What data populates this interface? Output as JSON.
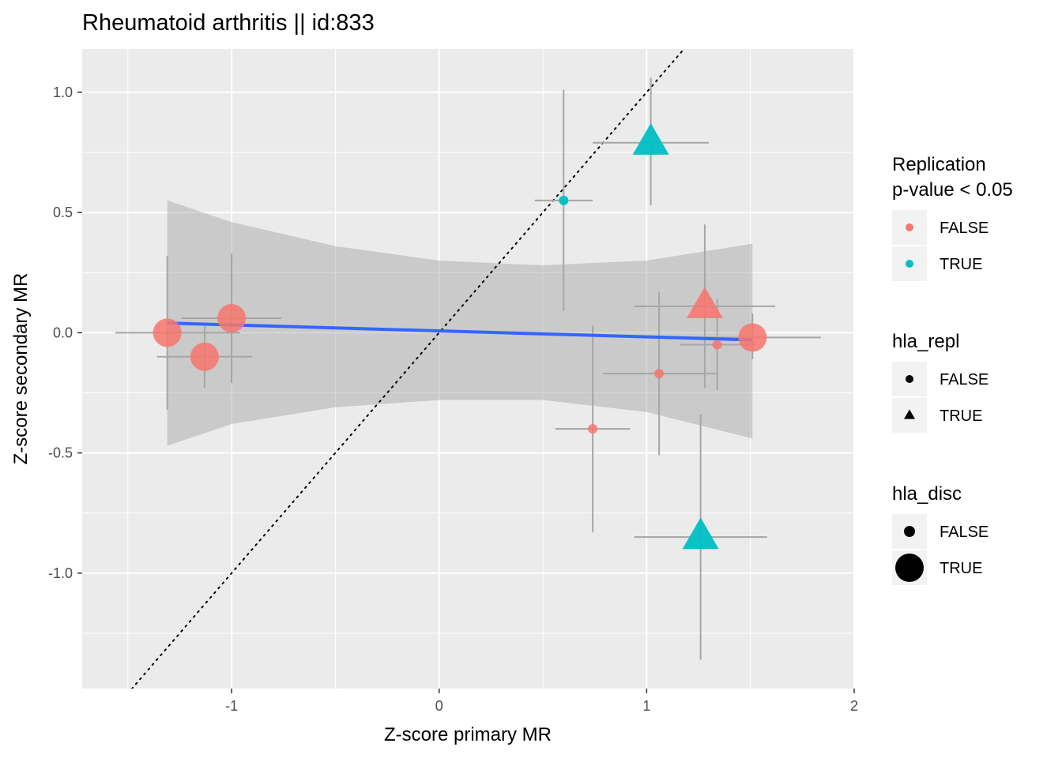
{
  "chart_data": {
    "type": "scatter",
    "title": "Rheumatoid arthritis || id:833",
    "xlabel": "Z-score primary MR",
    "ylabel": "Z-score secondary MR",
    "xlim": [
      -1.72,
      2.0
    ],
    "ylim": [
      -1.48,
      1.18
    ],
    "x_ticks": [
      -1,
      0,
      1,
      2
    ],
    "x_tick_labels": [
      "-1",
      "0",
      "1",
      "2"
    ],
    "y_ticks": [
      -1.0,
      -0.5,
      0.0,
      0.5,
      1.0
    ],
    "y_tick_labels": [
      "-1.0",
      "-0.5",
      "0.0",
      "0.5",
      "1.0"
    ],
    "grid": true,
    "legend_position": "right",
    "colors": {
      "FALSE": "#F8766D",
      "TRUE": "#00BFC4",
      "fit_line": "#3366FF",
      "ribbon": "#999999",
      "error_bars": "#a6a6a6",
      "panel": "#EBEBEB"
    },
    "points": [
      {
        "x": -1.31,
        "y": 0.0,
        "x_lo": -1.56,
        "x_hi": -0.96,
        "y_lo": -0.32,
        "y_hi": 0.32,
        "replication": "FALSE",
        "hla_repl": "FALSE",
        "hla_disc": "TRUE"
      },
      {
        "x": -1.13,
        "y": -0.1,
        "x_lo": -1.36,
        "x_hi": -0.9,
        "y_lo": -0.23,
        "y_hi": 0.04,
        "replication": "FALSE",
        "hla_repl": "FALSE",
        "hla_disc": "TRUE"
      },
      {
        "x": -1.0,
        "y": 0.06,
        "x_lo": -1.24,
        "x_hi": -0.76,
        "y_lo": -0.21,
        "y_hi": 0.33,
        "replication": "FALSE",
        "hla_repl": "FALSE",
        "hla_disc": "TRUE"
      },
      {
        "x": 0.6,
        "y": 0.55,
        "x_lo": 0.46,
        "x_hi": 0.74,
        "y_lo": 0.09,
        "y_hi": 1.01,
        "replication": "TRUE",
        "hla_repl": "FALSE",
        "hla_disc": "FALSE"
      },
      {
        "x": 0.74,
        "y": -0.4,
        "x_lo": 0.56,
        "x_hi": 0.92,
        "y_lo": -0.83,
        "y_hi": 0.03,
        "replication": "FALSE",
        "hla_repl": "FALSE",
        "hla_disc": "FALSE"
      },
      {
        "x": 1.02,
        "y": 0.79,
        "x_lo": 0.74,
        "x_hi": 1.3,
        "y_lo": 0.53,
        "y_hi": 1.06,
        "replication": "TRUE",
        "hla_repl": "TRUE",
        "hla_disc": "TRUE"
      },
      {
        "x": 1.06,
        "y": -0.17,
        "x_lo": 0.79,
        "x_hi": 1.34,
        "y_lo": -0.51,
        "y_hi": 0.17,
        "replication": "FALSE",
        "hla_repl": "FALSE",
        "hla_disc": "FALSE"
      },
      {
        "x": 1.26,
        "y": -0.85,
        "x_lo": 0.94,
        "x_hi": 1.58,
        "y_lo": -1.36,
        "y_hi": -0.34,
        "replication": "TRUE",
        "hla_repl": "TRUE",
        "hla_disc": "TRUE"
      },
      {
        "x": 1.28,
        "y": 0.11,
        "x_lo": 0.94,
        "x_hi": 1.62,
        "y_lo": -0.23,
        "y_hi": 0.45,
        "replication": "FALSE",
        "hla_repl": "TRUE",
        "hla_disc": "TRUE"
      },
      {
        "x": 1.34,
        "y": -0.05,
        "x_lo": 1.16,
        "x_hi": 1.52,
        "y_lo": -0.24,
        "y_hi": 0.14,
        "replication": "FALSE",
        "hla_repl": "FALSE",
        "hla_disc": "FALSE"
      },
      {
        "x": 1.51,
        "y": -0.02,
        "x_lo": 1.18,
        "x_hi": 1.84,
        "y_lo": -0.11,
        "y_hi": 0.08,
        "replication": "FALSE",
        "hla_repl": "FALSE",
        "hla_disc": "TRUE"
      }
    ],
    "fit_line": {
      "x": [
        -1.31,
        1.51
      ],
      "y": [
        0.04,
        -0.03
      ]
    },
    "confidence_band": [
      {
        "x": -1.31,
        "lo": -0.47,
        "hi": 0.55
      },
      {
        "x": -1.0,
        "lo": -0.38,
        "hi": 0.46
      },
      {
        "x": -0.5,
        "lo": -0.31,
        "hi": 0.36
      },
      {
        "x": 0.0,
        "lo": -0.28,
        "hi": 0.3
      },
      {
        "x": 0.5,
        "lo": -0.28,
        "hi": 0.28
      },
      {
        "x": 1.0,
        "lo": -0.33,
        "hi": 0.3
      },
      {
        "x": 1.51,
        "lo": -0.44,
        "hi": 0.37
      }
    ],
    "reference_line": {
      "slope": 1,
      "intercept": 0,
      "style": "dotted"
    },
    "legends": [
      {
        "title": [
          "Replication",
          "p-value < 0.05"
        ],
        "entries": [
          {
            "label": "FALSE",
            "shape": "circle",
            "color": "#F8766D",
            "size": "small"
          },
          {
            "label": "TRUE",
            "shape": "circle",
            "color": "#00BFC4",
            "size": "small"
          }
        ]
      },
      {
        "title": [
          "hla_repl"
        ],
        "entries": [
          {
            "label": "FALSE",
            "shape": "circle",
            "color": "#000000",
            "size": "small"
          },
          {
            "label": "TRUE",
            "shape": "triangle",
            "color": "#000000",
            "size": "small"
          }
        ]
      },
      {
        "title": [
          "hla_disc"
        ],
        "entries": [
          {
            "label": "FALSE",
            "shape": "circle",
            "color": "#000000",
            "size": "medium"
          },
          {
            "label": "TRUE",
            "shape": "circle",
            "color": "#000000",
            "size": "large"
          }
        ]
      }
    ]
  }
}
